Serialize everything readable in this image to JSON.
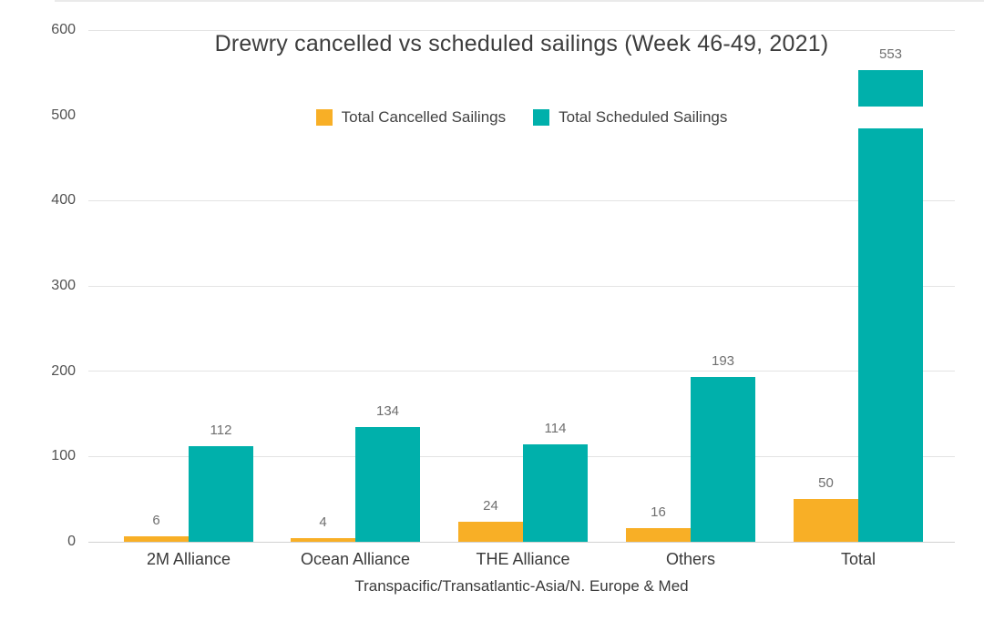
{
  "chart_data": {
    "type": "bar",
    "title": "Drewry cancelled vs scheduled sailings (Week 46-49, 2021)",
    "categories": [
      "2M Alliance",
      "Ocean Alliance",
      "THE Alliance",
      "Others",
      "Total"
    ],
    "series": [
      {
        "name": "Total Cancelled Sailings",
        "color": "#F8AF26",
        "values": [
          6,
          4,
          24,
          16,
          50
        ]
      },
      {
        "name": "Total Scheduled Sailings",
        "color": "#00B0AB",
        "values": [
          112,
          134,
          114,
          193,
          553
        ]
      }
    ],
    "xlabel": "Transpacific/Transatlantic-Asia/N. Europe & Med",
    "ylabel": "",
    "ylim": [
      0,
      600
    ],
    "yticks": [
      0,
      100,
      200,
      300,
      400,
      500,
      600
    ],
    "grid": true,
    "legend_position": "top-center",
    "background": "#ffffff",
    "value_labels_shown": true
  }
}
